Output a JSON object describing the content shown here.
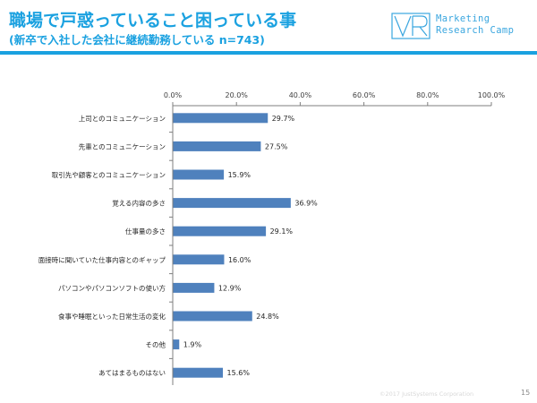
{
  "header": {
    "title": "職場で戸惑っていること困っている事",
    "subtitle": "(新卒で入社した会社に継続勤務している n=743)"
  },
  "logo": {
    "line1": "Marketing",
    "line2": "Research Camp",
    "color": "#3aa6df"
  },
  "accent_color": "#1aa1e0",
  "bar_color": "#4f81bd",
  "footer": {
    "copyright": "©2017 JustSystems Corporation",
    "page": "15"
  },
  "chart_data": {
    "type": "bar",
    "orientation": "horizontal",
    "categories": [
      "上司とのコミュニケーション",
      "先輩とのコミュニケーション",
      "取引先や顧客とのコミュニケーション",
      "覚える内容の多さ",
      "仕事量の多さ",
      "面接時に聞いていた仕事内容とのギャップ",
      "パソコンやパソコンソフトの使い方",
      "食事や睡眠といった日常生活の変化",
      "その他",
      "あてはまるものはない"
    ],
    "values": [
      29.7,
      27.5,
      15.9,
      36.9,
      29.1,
      16.0,
      12.9,
      24.8,
      1.9,
      15.6
    ],
    "value_labels": [
      "29.7%",
      "27.5%",
      "15.9%",
      "36.9%",
      "29.1%",
      "16.0%",
      "12.9%",
      "24.8%",
      "1.9%",
      "15.6%"
    ],
    "xlim": [
      0,
      100
    ],
    "ticks": [
      0,
      20,
      40,
      60,
      80,
      100
    ],
    "tick_labels": [
      "0.0%",
      "20.0%",
      "40.0%",
      "60.0%",
      "80.0%",
      "100.0%"
    ],
    "axis_position": "top",
    "grid": false,
    "legend": false
  }
}
